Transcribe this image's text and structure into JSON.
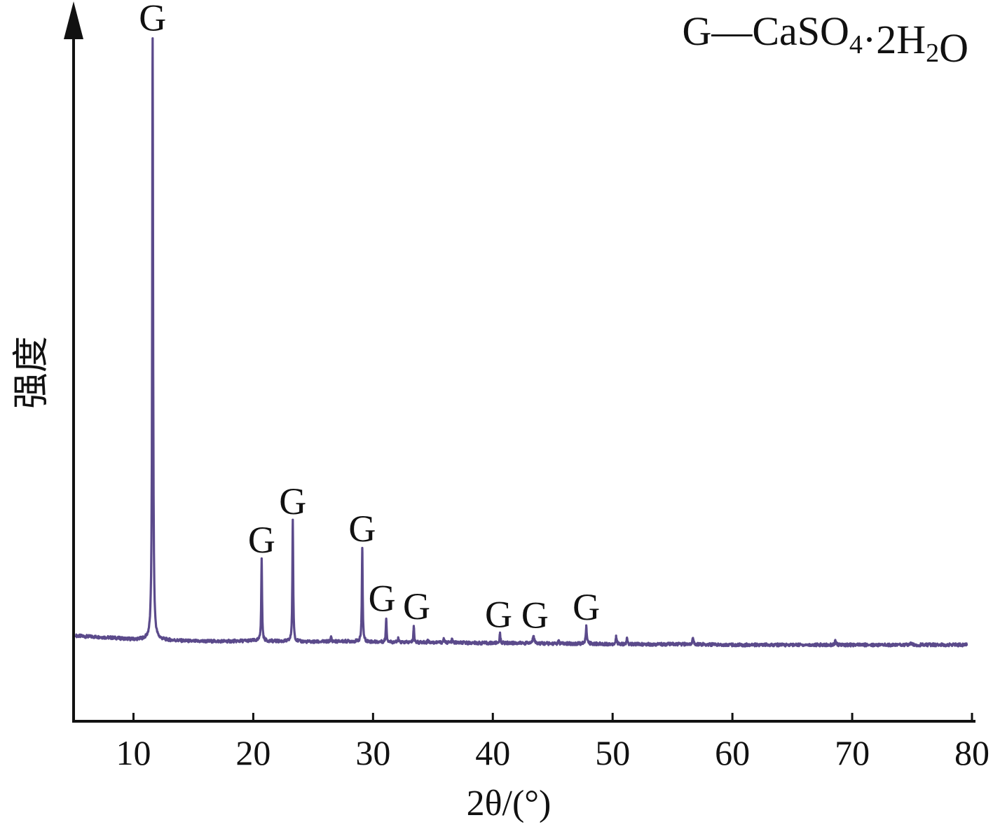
{
  "chart_data": {
    "type": "line",
    "xlabel": "2θ/(°)",
    "ylabel": "强度",
    "xlim": [
      5,
      80
    ],
    "xticks": [
      10,
      20,
      30,
      40,
      50,
      60,
      70,
      80
    ],
    "series_color": "#5b4a8b",
    "legend": {
      "symbol": "G",
      "separator": "—",
      "formula_parts": [
        {
          "text": "CaSO"
        },
        {
          "text": "4",
          "sub": true
        },
        {
          "text": "·2H"
        },
        {
          "text": "2",
          "sub": true
        },
        {
          "text": "O"
        }
      ],
      "placement": "top-right"
    },
    "baseline": [
      [
        5.2,
        0.0
      ],
      [
        6,
        -0.001
      ],
      [
        8,
        -0.003
      ],
      [
        10,
        -0.006
      ],
      [
        11,
        -0.006
      ],
      [
        12.5,
        -0.007
      ],
      [
        15,
        -0.009
      ],
      [
        18,
        -0.009
      ],
      [
        20,
        -0.008
      ],
      [
        22,
        -0.009
      ],
      [
        25,
        -0.01
      ],
      [
        28,
        -0.009
      ],
      [
        30,
        -0.01
      ],
      [
        33,
        -0.011
      ],
      [
        36,
        -0.011
      ],
      [
        39,
        -0.012
      ],
      [
        42,
        -0.012
      ],
      [
        45,
        -0.013
      ],
      [
        48,
        -0.013
      ],
      [
        51,
        -0.014
      ],
      [
        54,
        -0.014
      ],
      [
        57,
        -0.014
      ],
      [
        60,
        -0.015
      ],
      [
        63,
        -0.015
      ],
      [
        66,
        -0.015
      ],
      [
        70,
        -0.015
      ],
      [
        74,
        -0.015
      ],
      [
        78,
        -0.015
      ],
      [
        79.6,
        -0.015
      ]
    ],
    "peaks": [
      {
        "x": 11.6,
        "height": 1.0,
        "width": 0.09,
        "label": "G"
      },
      {
        "x": 20.7,
        "height": 0.135,
        "width": 0.08,
        "label": "G"
      },
      {
        "x": 23.3,
        "height": 0.2,
        "width": 0.08,
        "label": "G"
      },
      {
        "x": 26.5,
        "height": 0.007,
        "width": 0.1,
        "label": ""
      },
      {
        "x": 29.1,
        "height": 0.155,
        "width": 0.08,
        "label": "G"
      },
      {
        "x": 31.1,
        "height": 0.04,
        "width": 0.08,
        "label": "G"
      },
      {
        "x": 32.1,
        "height": 0.006,
        "width": 0.08,
        "label": ""
      },
      {
        "x": 33.4,
        "height": 0.027,
        "width": 0.08,
        "label": "G"
      },
      {
        "x": 34.6,
        "height": 0.005,
        "width": 0.08,
        "label": ""
      },
      {
        "x": 35.9,
        "height": 0.006,
        "width": 0.08,
        "label": ""
      },
      {
        "x": 36.6,
        "height": 0.005,
        "width": 0.08,
        "label": ""
      },
      {
        "x": 40.6,
        "height": 0.015,
        "width": 0.09,
        "label": "G"
      },
      {
        "x": 43.4,
        "height": 0.014,
        "width": 0.13,
        "label": "G"
      },
      {
        "x": 45.5,
        "height": 0.004,
        "width": 0.1,
        "label": ""
      },
      {
        "x": 47.8,
        "height": 0.028,
        "width": 0.1,
        "label": "G"
      },
      {
        "x": 50.3,
        "height": 0.012,
        "width": 0.1,
        "label": ""
      },
      {
        "x": 51.2,
        "height": 0.009,
        "width": 0.1,
        "label": ""
      },
      {
        "x": 56.7,
        "height": 0.009,
        "width": 0.12,
        "label": ""
      },
      {
        "x": 68.6,
        "height": 0.006,
        "width": 0.12,
        "label": ""
      },
      {
        "x": 74.9,
        "height": 0.003,
        "width": 0.12,
        "label": ""
      }
    ]
  }
}
